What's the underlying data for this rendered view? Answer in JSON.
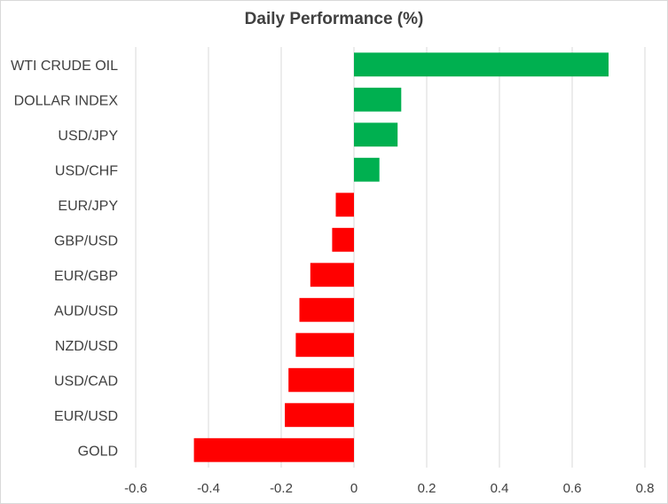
{
  "chart_data": {
    "type": "bar",
    "orientation": "horizontal",
    "title": "Daily Performance  (%)",
    "xlabel": "",
    "ylabel": "",
    "xlim": [
      -0.6,
      0.8
    ],
    "x_ticks": [
      "-0.6",
      "-0.4",
      "-0.2",
      "0",
      "0.2",
      "0.4",
      "0.6",
      "0.8"
    ],
    "grid": "vertical",
    "legend": "none",
    "categories": [
      "WTI CRUDE OIL",
      "DOLLAR INDEX",
      "USD/JPY",
      "USD/CHF",
      "EUR/JPY",
      "GBP/USD",
      "EUR/GBP",
      "AUD/USD",
      "NZD/USD",
      "USD/CAD",
      "EUR/USD",
      "GOLD"
    ],
    "values": [
      0.7,
      0.13,
      0.12,
      0.07,
      -0.05,
      -0.06,
      -0.12,
      -0.15,
      -0.16,
      -0.18,
      -0.19,
      -0.44
    ],
    "colors": {
      "positive": "#00b050",
      "negative": "#ff0000",
      "grid": "#d9d9d9",
      "text": "#404040"
    }
  }
}
